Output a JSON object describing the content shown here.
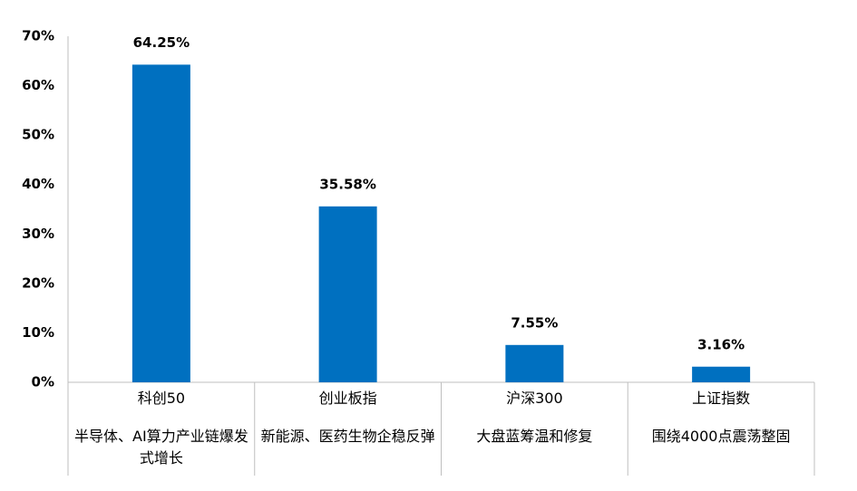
{
  "chart_data": {
    "type": "bar",
    "categories": [
      "科创50",
      "创业板指",
      "沪深300",
      "上证指数"
    ],
    "descriptions": [
      "半导体、AI算力产业链爆发式增长",
      "新能源、医药生物企稳反弹",
      "大盘蓝筹温和修复",
      "围绕4000点震荡整固"
    ],
    "values": [
      64.25,
      35.58,
      7.55,
      3.16
    ],
    "value_labels": [
      "64.25%",
      "35.58%",
      "7.55%",
      "3.16%"
    ],
    "color": "#0070c0",
    "ylim": [
      0,
      70
    ],
    "yticks": [
      {
        "value": 0,
        "label": "0%"
      },
      {
        "value": 10,
        "label": "10%"
      },
      {
        "value": 20,
        "label": "20%"
      },
      {
        "value": 30,
        "label": "30%"
      },
      {
        "value": 40,
        "label": "40%"
      },
      {
        "value": 50,
        "label": "50%"
      },
      {
        "value": 60,
        "label": "60%"
      },
      {
        "value": 70,
        "label": "70%"
      }
    ],
    "grid": false
  }
}
